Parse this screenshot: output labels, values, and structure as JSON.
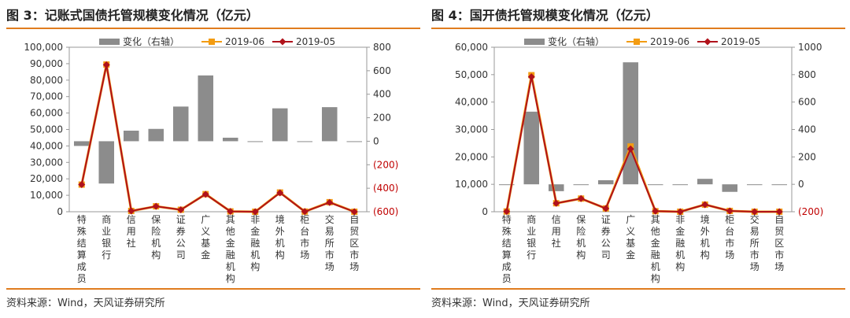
{
  "panels": [
    {
      "title": "图 3：记账式国债托管规模变化情况（亿元）",
      "source": "资料来源：Wind，天风证券研究所",
      "chart_data": {
        "type": "bar-line-combo",
        "categories": [
          "特殊结算成员",
          "商业银行",
          "信用社",
          "保险机构",
          "证券公司",
          "广义基金",
          "其他金融机构",
          "非金融机构",
          "境外机构",
          "柜台市场",
          "交易所市场",
          "自贸区市场"
        ],
        "left_axis": {
          "min": 0,
          "max": 100000,
          "step": 10000,
          "ticks": [
            "0",
            "10,000",
            "20,000",
            "30,000",
            "40,000",
            "50,000",
            "60,000",
            "70,000",
            "80,000",
            "90,000",
            "100,000"
          ]
        },
        "right_axis": {
          "min": -600,
          "max": 800,
          "step": 200,
          "ticks": [
            "(600)",
            "(400)",
            "(200)",
            "0",
            "200",
            "400",
            "600",
            "800"
          ],
          "negative_color": "#c00000"
        },
        "series": [
          {
            "name": "变化（右轴）",
            "type": "bar",
            "axis": "right",
            "color": "#8c8c8c",
            "values": [
              -40,
              -360,
              90,
              105,
              295,
              560,
              30,
              0,
              280,
              -5,
              290,
              0
            ]
          },
          {
            "name": "2019-06",
            "type": "line",
            "axis": "left",
            "color": "#f39c12",
            "values": [
              16500,
              89500,
              500,
              3300,
              1200,
              10700,
              200,
              10,
              11700,
              100,
              5800,
              10
            ]
          },
          {
            "name": "2019-05",
            "type": "line",
            "axis": "left",
            "color": "#b0121b",
            "values": [
              16500,
              89300,
              500,
              3300,
              1200,
              10600,
              200,
              10,
              11500,
              100,
              5600,
              10
            ]
          }
        ]
      }
    },
    {
      "title": "图 4：国开债托管规模变化情况（亿元）",
      "source": "资料来源：Wind，天风证券研究所",
      "chart_data": {
        "type": "bar-line-combo",
        "categories": [
          "特殊结算成员",
          "商业银行",
          "信用社",
          "保险机构",
          "证券公司",
          "广义基金",
          "其他金融机构",
          "非金融机构",
          "境外机构",
          "柜台市场",
          "交易所市场",
          "自贸区市场"
        ],
        "left_axis": {
          "min": 0,
          "max": 60000,
          "step": 10000,
          "ticks": [
            "0",
            "10,000",
            "20,000",
            "30,000",
            "40,000",
            "50,000",
            "60,000"
          ]
        },
        "right_axis": {
          "min": -200,
          "max": 1000,
          "step": 200,
          "ticks": [
            "(200)",
            "0",
            "200",
            "400",
            "600",
            "800",
            "1000"
          ],
          "negative_color": "#c00000"
        },
        "series": [
          {
            "name": "变化（右轴）",
            "type": "bar",
            "axis": "right",
            "color": "#8c8c8c",
            "values": [
              0,
              530,
              -50,
              0,
              30,
              890,
              0,
              0,
              40,
              -55,
              0,
              0
            ]
          },
          {
            "name": "2019-06",
            "type": "line",
            "axis": "left",
            "color": "#f39c12",
            "values": [
              100,
              49800,
              3100,
              4800,
              1200,
              23800,
              200,
              10,
              2600,
              300,
              10,
              10
            ]
          },
          {
            "name": "2019-05",
            "type": "line",
            "axis": "left",
            "color": "#b0121b",
            "values": [
              100,
              49200,
              3100,
              4800,
              1200,
              22900,
              200,
              10,
              2600,
              300,
              10,
              10
            ]
          }
        ]
      }
    }
  ]
}
